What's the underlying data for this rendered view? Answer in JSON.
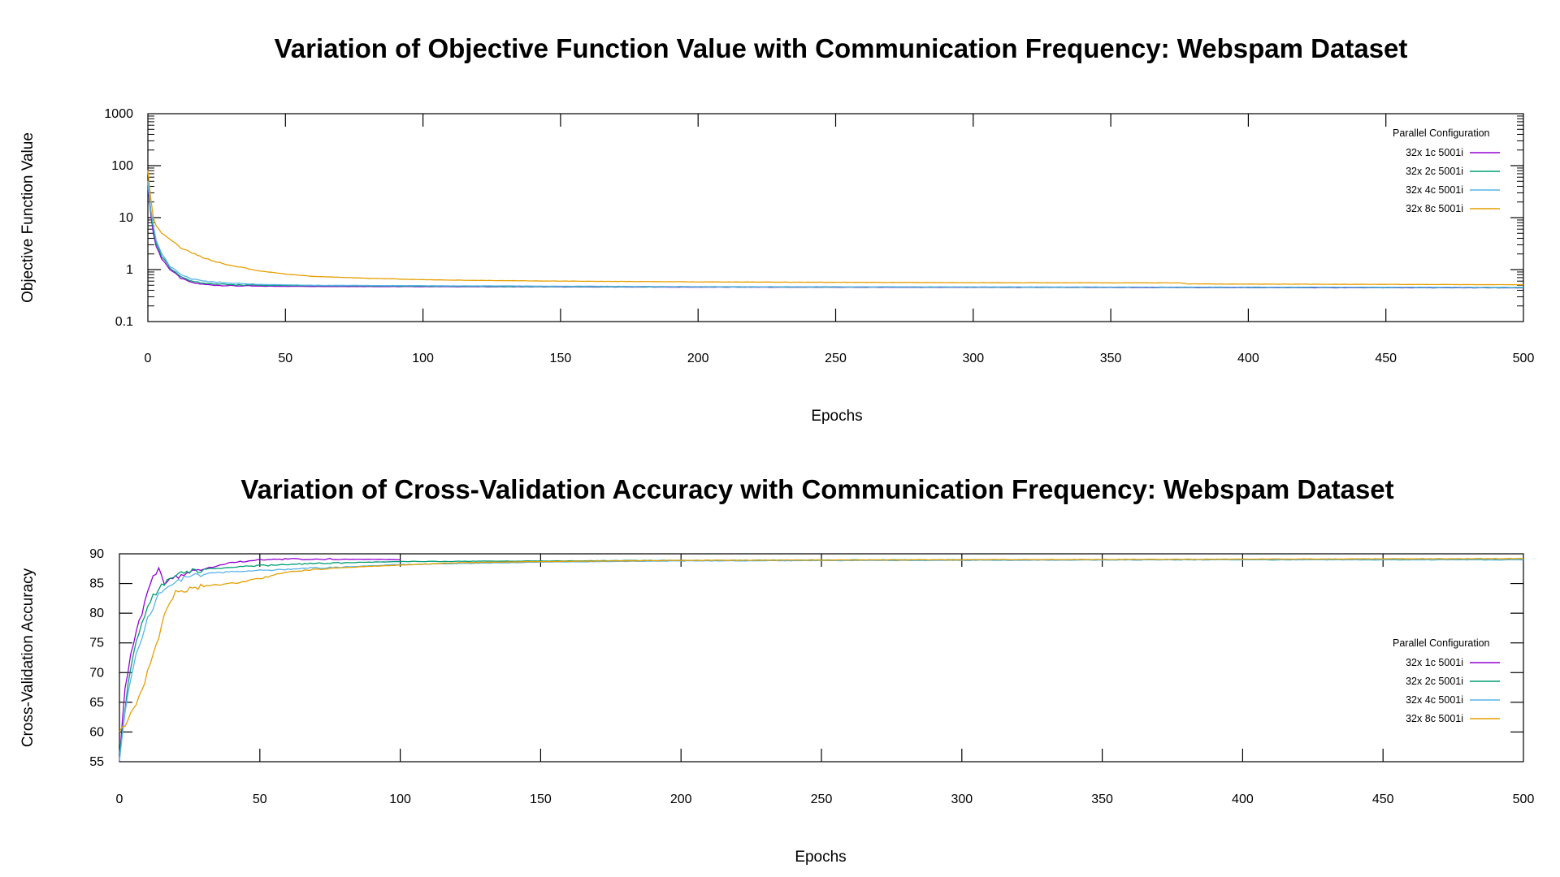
{
  "chart_data": [
    {
      "type": "line",
      "title": "Variation of Objective Function Value with Communication Frequency: Webspam Dataset",
      "xlabel": "Epochs",
      "ylabel": "Objective Function Value",
      "xlim": [
        0,
        500
      ],
      "ylim": [
        0.1,
        1000
      ],
      "yscale": "log",
      "xticks": [
        "0",
        "50",
        "100",
        "150",
        "200",
        "250",
        "300",
        "350",
        "400",
        "450",
        "500"
      ],
      "yticks": [
        "0.1",
        "1",
        "10",
        "100",
        "1000"
      ],
      "grid": false,
      "legend": {
        "title": "Parallel Configuration",
        "position": "top-right"
      },
      "series": [
        {
          "name": "32x 1c 5001i",
          "color": "#9400d3",
          "end": 500,
          "points": [
            [
              0,
              40
            ],
            [
              1,
              12
            ],
            [
              2,
              5
            ],
            [
              3,
              2.8
            ],
            [
              5,
              1.6
            ],
            [
              8,
              1.0
            ],
            [
              12,
              0.68
            ],
            [
              16,
              0.56
            ],
            [
              20,
              0.52
            ],
            [
              25,
              0.5
            ],
            [
              30,
              0.49
            ],
            [
              40,
              0.48
            ],
            [
              60,
              0.475
            ],
            [
              100,
              0.47
            ],
            [
              150,
              0.465
            ],
            [
              200,
              0.46
            ],
            [
              300,
              0.455
            ],
            [
              400,
              0.45
            ],
            [
              500,
              0.445
            ]
          ]
        },
        {
          "name": "32x 2c 5001i",
          "color": "#009e73",
          "end": 500,
          "points": [
            [
              0,
              45
            ],
            [
              1,
              14
            ],
            [
              2,
              6
            ],
            [
              3,
              3.2
            ],
            [
              5,
              1.8
            ],
            [
              8,
              1.05
            ],
            [
              12,
              0.72
            ],
            [
              16,
              0.6
            ],
            [
              20,
              0.55
            ],
            [
              30,
              0.51
            ],
            [
              40,
              0.5
            ],
            [
              60,
              0.49
            ],
            [
              100,
              0.48
            ],
            [
              150,
              0.47
            ],
            [
              200,
              0.465
            ],
            [
              300,
              0.46
            ],
            [
              400,
              0.455
            ],
            [
              500,
              0.45
            ]
          ]
        },
        {
          "name": "32x 4c 5001i",
          "color": "#56b4e9",
          "end": 500,
          "points": [
            [
              0,
              50
            ],
            [
              1,
              15
            ],
            [
              2,
              7
            ],
            [
              3,
              3.6
            ],
            [
              5,
              2.0
            ],
            [
              8,
              1.15
            ],
            [
              12,
              0.8
            ],
            [
              16,
              0.66
            ],
            [
              20,
              0.6
            ],
            [
              30,
              0.55
            ],
            [
              40,
              0.52
            ],
            [
              60,
              0.5
            ],
            [
              100,
              0.49
            ],
            [
              150,
              0.48
            ],
            [
              200,
              0.47
            ],
            [
              300,
              0.465
            ],
            [
              400,
              0.46
            ],
            [
              500,
              0.455
            ]
          ]
        },
        {
          "name": "32x 8c 5001i",
          "color": "#e69f00",
          "end": 500,
          "points": [
            [
              0,
              80
            ],
            [
              1,
              25
            ],
            [
              2,
              10
            ],
            [
              3,
              7
            ],
            [
              5,
              5
            ],
            [
              8,
              3.8
            ],
            [
              12,
              2.6
            ],
            [
              16,
              2.1
            ],
            [
              20,
              1.7
            ],
            [
              25,
              1.4
            ],
            [
              30,
              1.2
            ],
            [
              40,
              0.95
            ],
            [
              50,
              0.82
            ],
            [
              60,
              0.74
            ],
            [
              80,
              0.68
            ],
            [
              100,
              0.64
            ],
            [
              120,
              0.62
            ],
            [
              150,
              0.6
            ],
            [
              200,
              0.58
            ],
            [
              250,
              0.57
            ],
            [
              300,
              0.56
            ],
            [
              375,
              0.555
            ],
            [
              378,
              0.53
            ],
            [
              450,
              0.52
            ],
            [
              500,
              0.51
            ]
          ]
        }
      ]
    },
    {
      "type": "line",
      "title": "Variation of Cross-Validation Accuracy with Communication Frequency: Webspam Dataset",
      "xlabel": "Epochs",
      "ylabel": "Cross-Validation Accuracy",
      "xlim": [
        0,
        500
      ],
      "ylim": [
        55,
        90
      ],
      "yscale": "linear",
      "xticks": [
        "0",
        "50",
        "100",
        "150",
        "200",
        "250",
        "300",
        "350",
        "400",
        "450",
        "500"
      ],
      "yticks": [
        "55",
        "60",
        "65",
        "70",
        "75",
        "80",
        "85",
        "90"
      ],
      "grid": false,
      "legend": {
        "title": "Parallel Configuration",
        "position": "right"
      },
      "series": [
        {
          "name": "32x 1c 5001i",
          "color": "#9400d3",
          "end": 100,
          "points": [
            [
              0,
              55
            ],
            [
              1,
              62
            ],
            [
              2,
              67
            ],
            [
              3,
              70
            ],
            [
              4,
              73
            ],
            [
              5,
              75
            ],
            [
              6,
              77
            ],
            [
              7,
              79
            ],
            [
              8,
              80
            ],
            [
              9,
              82
            ],
            [
              10,
              84
            ],
            [
              11,
              85
            ],
            [
              12,
              86
            ],
            [
              13,
              86.8
            ],
            [
              14,
              87.2
            ],
            [
              15,
              86
            ],
            [
              16,
              85
            ],
            [
              18,
              85.5
            ],
            [
              20,
              86
            ],
            [
              25,
              87
            ],
            [
              30,
              87.5
            ],
            [
              40,
              88.5
            ],
            [
              50,
              89
            ],
            [
              60,
              89.1
            ],
            [
              80,
              89.1
            ],
            [
              100,
              89
            ]
          ]
        },
        {
          "name": "32x 2c 5001i",
          "color": "#009e73",
          "end": 500,
          "points": [
            [
              0,
              56
            ],
            [
              1,
              60
            ],
            [
              2,
              64
            ],
            [
              3,
              68
            ],
            [
              4,
              71
            ],
            [
              5,
              73
            ],
            [
              6,
              75
            ],
            [
              8,
              78
            ],
            [
              10,
              81
            ],
            [
              12,
              83
            ],
            [
              14,
              84
            ],
            [
              16,
              85
            ],
            [
              18,
              86
            ],
            [
              20,
              86.5
            ],
            [
              25,
              87
            ],
            [
              30,
              87.3
            ],
            [
              40,
              87.8
            ],
            [
              50,
              88
            ],
            [
              60,
              88.2
            ],
            [
              80,
              88.5
            ],
            [
              100,
              88.7
            ],
            [
              150,
              88.8
            ],
            [
              200,
              88.9
            ],
            [
              300,
              89
            ],
            [
              400,
              89
            ],
            [
              500,
              89
            ]
          ]
        },
        {
          "name": "32x 4c 5001i",
          "color": "#56b4e9",
          "end": 500,
          "points": [
            [
              0,
              55
            ],
            [
              1,
              59
            ],
            [
              2,
              63
            ],
            [
              3,
              66
            ],
            [
              4,
              69
            ],
            [
              5,
              71
            ],
            [
              6,
              73
            ],
            [
              8,
              76
            ],
            [
              10,
              79
            ],
            [
              12,
              81
            ],
            [
              14,
              83
            ],
            [
              16,
              84
            ],
            [
              18,
              85
            ],
            [
              20,
              85.5
            ],
            [
              25,
              86.2
            ],
            [
              30,
              86.6
            ],
            [
              40,
              87
            ],
            [
              50,
              87.2
            ],
            [
              60,
              87.4
            ],
            [
              80,
              87.8
            ],
            [
              100,
              88.2
            ],
            [
              150,
              88.6
            ],
            [
              200,
              88.8
            ],
            [
              300,
              88.9
            ],
            [
              400,
              89
            ],
            [
              500,
              89
            ]
          ]
        },
        {
          "name": "32x 8c 5001i",
          "color": "#e69f00",
          "end": 500,
          "points": [
            [
              0,
              60
            ],
            [
              2,
              61
            ],
            [
              4,
              63
            ],
            [
              6,
              65
            ],
            [
              8,
              67
            ],
            [
              10,
              70
            ],
            [
              12,
              73
            ],
            [
              14,
              76
            ],
            [
              16,
              80
            ],
            [
              18,
              82
            ],
            [
              20,
              83.5
            ],
            [
              25,
              84.2
            ],
            [
              30,
              84.5
            ],
            [
              35,
              84.8
            ],
            [
              40,
              85
            ],
            [
              50,
              85.8
            ],
            [
              60,
              87
            ],
            [
              70,
              87.4
            ],
            [
              80,
              87.7
            ],
            [
              100,
              88.1
            ],
            [
              120,
              88.5
            ],
            [
              150,
              88.7
            ],
            [
              200,
              88.9
            ],
            [
              300,
              89
            ],
            [
              400,
              89.1
            ],
            [
              500,
              89.2
            ]
          ]
        }
      ]
    }
  ]
}
